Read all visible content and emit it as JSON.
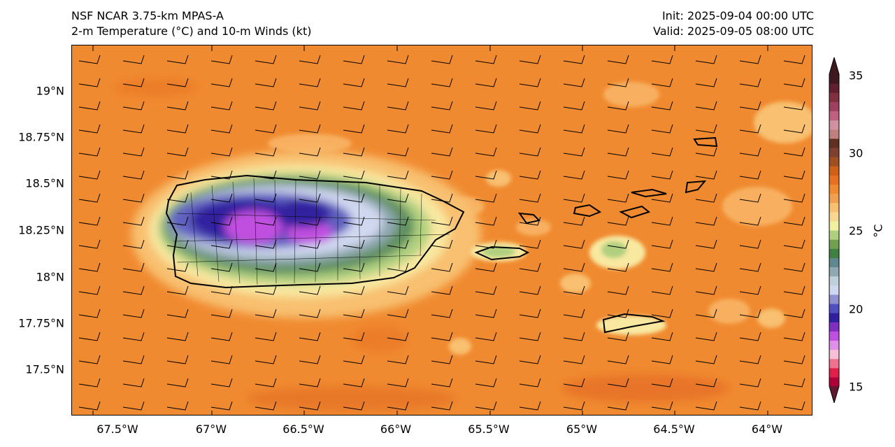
{
  "title": {
    "left_line1": "NSF NCAR 3.75-km MPAS-A",
    "left_line2": "2-m Temperature (°C) and 10-m Winds (kt)",
    "right_line1": "Init: 2025-09-04 00:00 UTC",
    "right_line2": "Valid: 2025-09-05 08:00 UTC"
  },
  "map": {
    "lon_range": [
      -67.75,
      -63.75
    ],
    "lat_range": [
      17.3,
      19.25
    ],
    "lat_ticks": [
      "19°N",
      "18.75°N",
      "18.5°N",
      "18.25°N",
      "18°N",
      "17.75°N",
      "17.5°N"
    ],
    "lat_tick_values": [
      19.0,
      18.75,
      18.5,
      18.25,
      18.0,
      17.75,
      17.5
    ],
    "lon_ticks": [
      "67.5°W",
      "67°W",
      "66.5°W",
      "66°W",
      "65.5°W",
      "65°W",
      "64.5°W",
      "64°W"
    ],
    "lon_tick_values": [
      -67.5,
      -67.0,
      -66.5,
      -66.0,
      -65.5,
      -65.0,
      -64.5,
      -64.0
    ],
    "background_color": "#f08a30",
    "wind_barb_color": "#000000",
    "wind_direction": "easterly"
  },
  "colorbar": {
    "label": "°C",
    "ticks": [
      "35",
      "30",
      "25",
      "20",
      "15"
    ],
    "min": 15,
    "max": 35,
    "extend": "both",
    "colors": [
      "#b0003a",
      "#e0204a",
      "#f07090",
      "#f8c0d8",
      "#e090e8",
      "#c050e0",
      "#8030c0",
      "#3020a0",
      "#5050c0",
      "#9090d0",
      "#d0d8f0",
      "#c0d0d8",
      "#90a8b0",
      "#608890",
      "#408040",
      "#70a050",
      "#b0d080",
      "#f0f0a0",
      "#f8d890",
      "#f8c070",
      "#f0a050",
      "#f08a30",
      "#e87020",
      "#d06018",
      "#a05020",
      "#804030",
      "#603020",
      "#c08080",
      "#d090a0",
      "#c06080",
      "#a04060",
      "#803040",
      "#602030",
      "#401820"
    ]
  }
}
